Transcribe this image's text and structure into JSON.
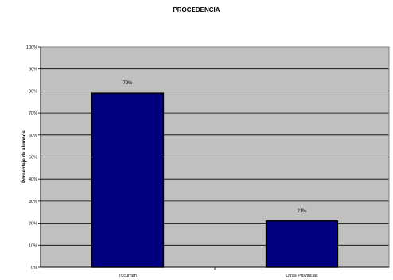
{
  "chart_data": {
    "type": "bar",
    "title": "PROCEDENCIA",
    "ylabel": "Porcentaje de alumnos",
    "xlabel": "",
    "categories": [
      "Tucumán",
      "Otras Provincias"
    ],
    "values": [
      79,
      21
    ],
    "data_labels": [
      "79%",
      "21%"
    ],
    "ylim": [
      0,
      100
    ],
    "yticks": [
      0,
      10,
      20,
      30,
      40,
      50,
      60,
      70,
      80,
      90,
      100
    ],
    "ytick_labels": [
      "0%",
      "10%",
      "20%",
      "30%",
      "40%",
      "50%",
      "60%",
      "70%",
      "80%",
      "90%",
      "100%"
    ],
    "grid": true,
    "legend": "none",
    "colors": {
      "bar": "#000080",
      "plot_background": "#c0c0c0",
      "grid": "#000000"
    }
  }
}
